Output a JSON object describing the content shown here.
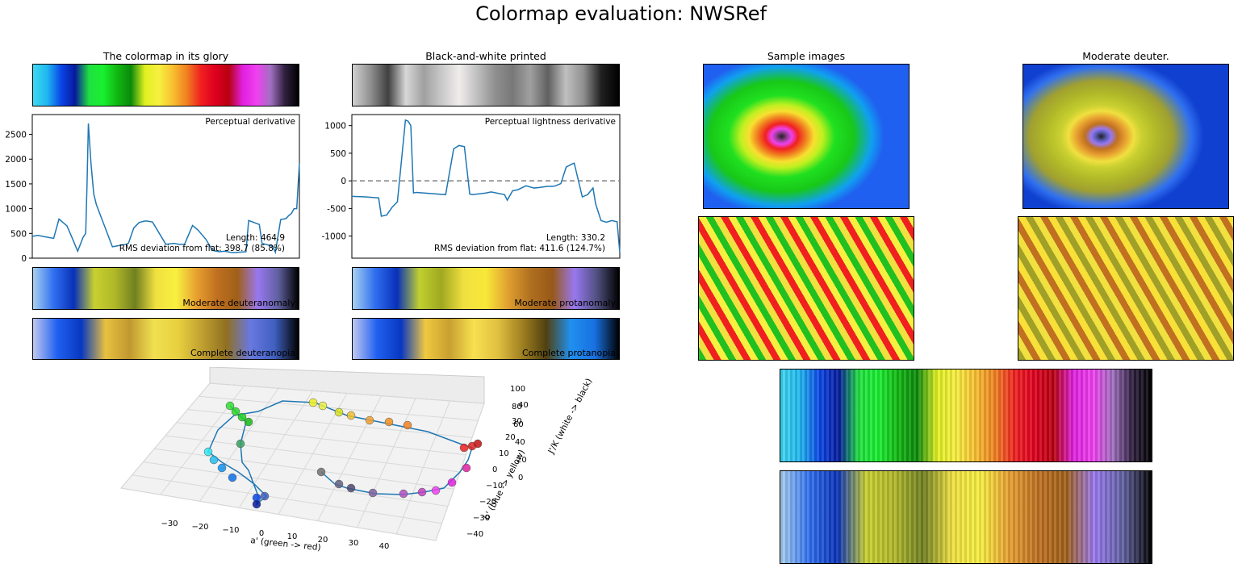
{
  "title": "Colormap evaluation: NWSRef",
  "panel_titles": {
    "glory": "The colormap in its glory",
    "bw": "Black-and-white printed",
    "samples": "Sample images",
    "deuter": "Moderate deuter."
  },
  "colors": {
    "line": "#1f77b4",
    "cmap": [
      "#3fd8f2",
      "#1fb8f0",
      "#0a46e8",
      "#061a9c",
      "#20e040",
      "#18f030",
      "#12b812",
      "#0a8a0a",
      "#e0f020",
      "#f8f040",
      "#f8c030",
      "#f08020",
      "#f02020",
      "#e00020",
      "#b80010",
      "#e020e0",
      "#f040f0",
      "#a070c0",
      "#302040",
      "#000000"
    ],
    "cmap_deut": [
      "#a8d0f0",
      "#3070f0",
      "#0830b8",
      "#c8d030",
      "#b0b828",
      "#708020",
      "#f0e040",
      "#f8f040",
      "#e8a030",
      "#c07020",
      "#a06018",
      "#9878f0",
      "#6060a0",
      "#000000"
    ],
    "cmap_prot": [
      "#a8d0f0",
      "#3070f0",
      "#0830b8",
      "#c0d030",
      "#a0a820",
      "#f0e040",
      "#f8e838",
      "#e0a030",
      "#b07020",
      "#985818",
      "#9878f0",
      "#505080",
      "#000000"
    ],
    "cmap_deutc": [
      "#c0c8f0",
      "#2060f0",
      "#0838c0",
      "#e8c040",
      "#c09830",
      "#f0e050",
      "#e8d040",
      "#c0a030",
      "#907020",
      "#6878e0",
      "#4060c0",
      "#000000"
    ],
    "cmap_protc": [
      "#c0c8f0",
      "#2060f0",
      "#0838c0",
      "#f0c840",
      "#c8a030",
      "#f8e050",
      "#e0c040",
      "#a08020",
      "#504010",
      "#2090f0",
      "#1870e0",
      "#000000"
    ]
  },
  "annotations": {
    "perc_deriv": "Perceptual derivative",
    "perc_len": "Length: 464.9",
    "perc_rms": "RMS deviation from flat: 398.7 (85.8%)",
    "light_deriv": "Perceptual lightness derivative",
    "light_len": "Length: 330.2",
    "light_rms": "RMS deviation from flat: 411.6 (124.7%)",
    "mod_deut": "Moderate deuteranomaly",
    "mod_prot": "Moderate protanomaly",
    "comp_deut": "Complete deuteranopia",
    "comp_prot": "Complete protanopia"
  },
  "axes3d": {
    "xlabel": "a' (green -> red)",
    "ylabel": "b' (blue -> yellow)",
    "zlabel": "J'/K (white -> black)",
    "xticks": [
      "−30",
      "−20",
      "−10",
      "0",
      "10",
      "20",
      "30",
      "40"
    ],
    "yticks": [
      "−40",
      "−30",
      "−20",
      "−10",
      "0",
      "10",
      "20",
      "30",
      "40"
    ],
    "zticks": [
      "0",
      "20",
      "40",
      "60",
      "80",
      "100"
    ]
  },
  "chart_data": [
    {
      "type": "line",
      "title": "Perceptual derivative",
      "ylim": [
        0,
        2900
      ],
      "yticks": [
        0,
        500,
        1000,
        1500,
        2000,
        2500
      ],
      "x": [
        0,
        0.02,
        0.05,
        0.08,
        0.1,
        0.13,
        0.15,
        0.17,
        0.19,
        0.2,
        0.205,
        0.21,
        0.22,
        0.23,
        0.24,
        0.3,
        0.35,
        0.36,
        0.38,
        0.4,
        0.42,
        0.43,
        0.45,
        0.5,
        0.53,
        0.55,
        0.57,
        0.6,
        0.62,
        0.65,
        0.67,
        0.68,
        0.7,
        0.72,
        0.75,
        0.8,
        0.81,
        0.85,
        0.86,
        0.9,
        0.91,
        0.93,
        0.95,
        0.96,
        0.97,
        0.98,
        0.99,
        1.0
      ],
      "values": [
        440,
        460,
        430,
        400,
        790,
        650,
        400,
        140,
        420,
        500,
        1500,
        2720,
        1900,
        1300,
        1080,
        230,
        280,
        300,
        610,
        720,
        750,
        750,
        730,
        280,
        300,
        280,
        280,
        660,
        570,
        380,
        200,
        150,
        130,
        140,
        110,
        130,
        760,
        680,
        300,
        240,
        120,
        780,
        800,
        860,
        900,
        1000,
        1000,
        1920
      ]
    },
    {
      "type": "line",
      "title": "Perceptual lightness derivative",
      "ylim": [
        -1400,
        1200
      ],
      "yticks": [
        -1000,
        -500,
        0,
        500,
        1000
      ],
      "x": [
        0,
        0.05,
        0.1,
        0.11,
        0.13,
        0.15,
        0.17,
        0.2,
        0.21,
        0.22,
        0.23,
        0.24,
        0.35,
        0.38,
        0.4,
        0.42,
        0.44,
        0.45,
        0.5,
        0.52,
        0.57,
        0.58,
        0.6,
        0.62,
        0.65,
        0.68,
        0.7,
        0.73,
        0.75,
        0.76,
        0.78,
        0.8,
        0.82,
        0.83,
        0.86,
        0.88,
        0.9,
        0.91,
        0.93,
        0.95,
        0.97,
        0.99,
        1.0
      ],
      "values": [
        -280,
        -290,
        -310,
        -640,
        -620,
        -480,
        -380,
        1100,
        1080,
        1000,
        -220,
        -210,
        -250,
        580,
        640,
        620,
        -240,
        -250,
        -220,
        -200,
        -250,
        -350,
        -180,
        -160,
        -90,
        -130,
        -120,
        -100,
        -100,
        -90,
        -50,
        250,
        300,
        320,
        -290,
        -250,
        -130,
        -420,
        -720,
        -750,
        -720,
        -740,
        -1300
      ]
    }
  ]
}
